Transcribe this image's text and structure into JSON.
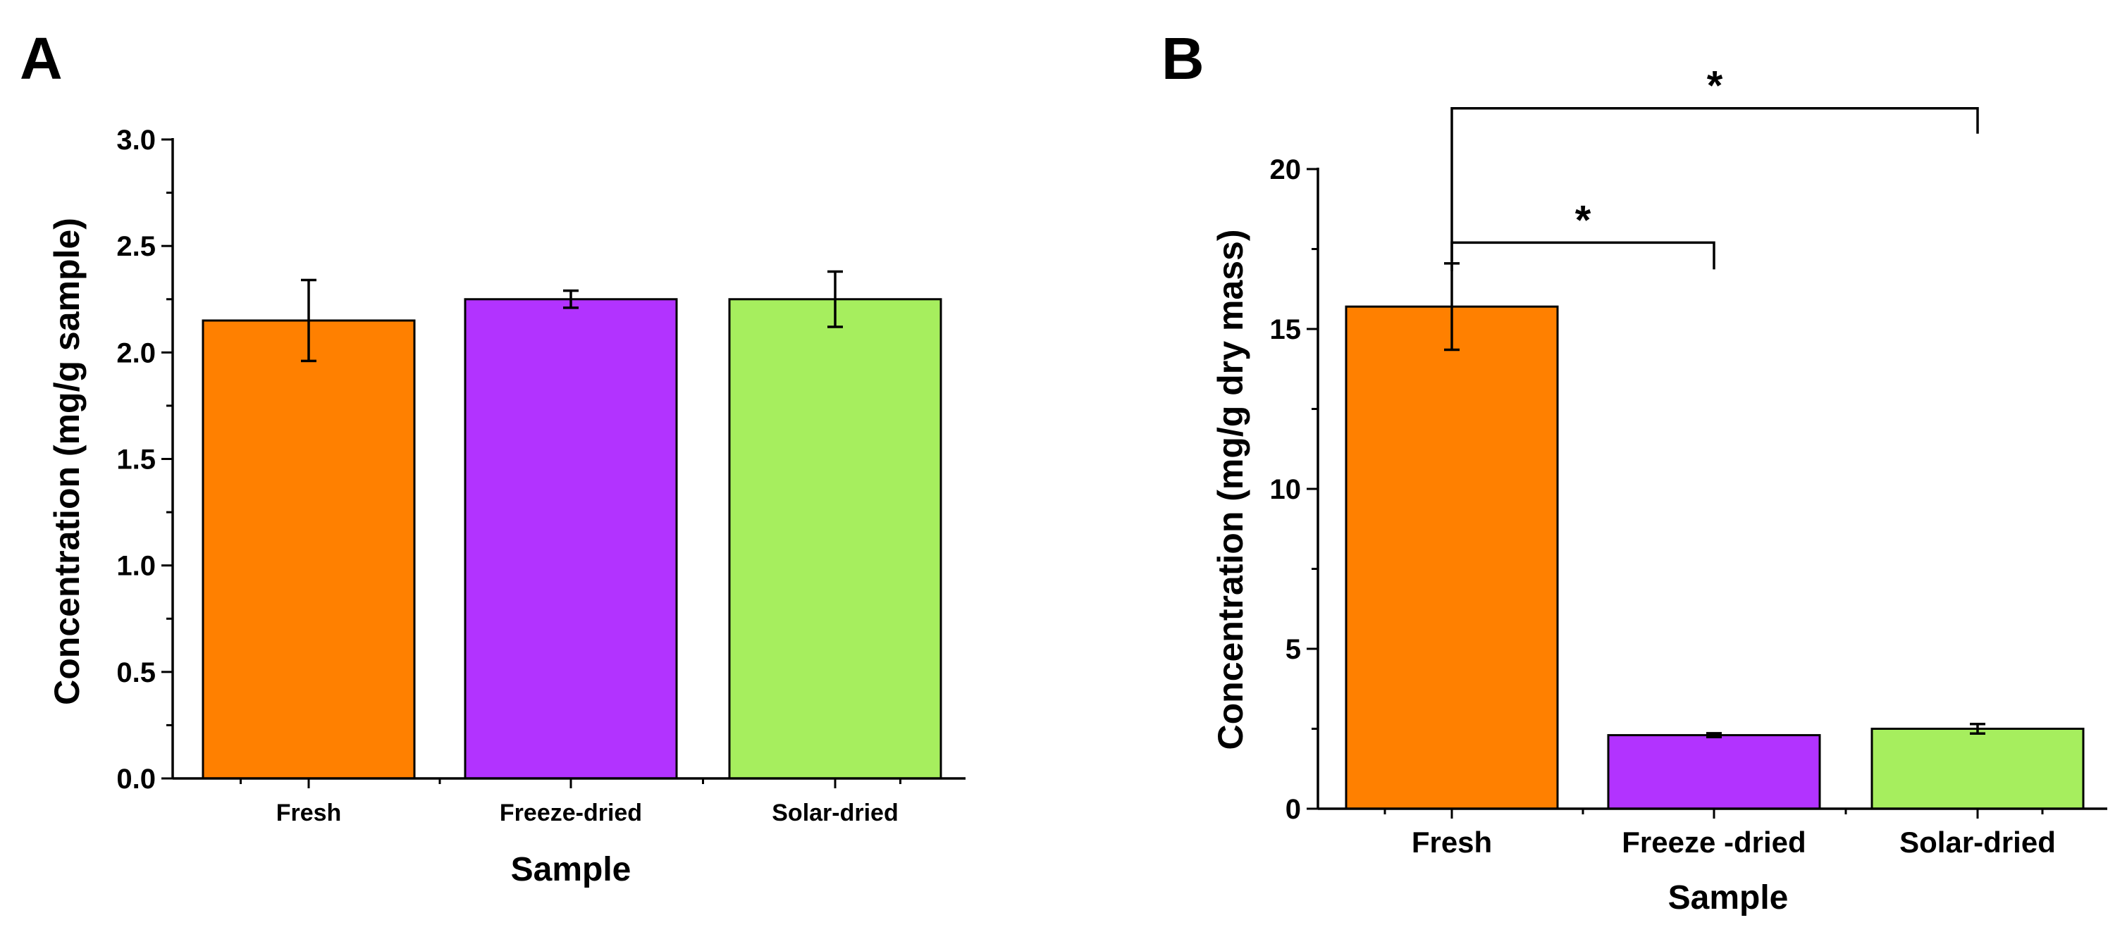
{
  "chart_data": [
    {
      "panel": "A",
      "type": "bar",
      "categories": [
        "Fresh",
        "Freeze-dried",
        "Solar-dried"
      ],
      "values": [
        2.15,
        2.25,
        2.25
      ],
      "errors": [
        0.19,
        0.04,
        0.13
      ],
      "colors": [
        "#FF8000",
        "#B233FF",
        "#A6EE5E"
      ],
      "xlabel": "Sample",
      "ylabel": "Concentration (mg/g sample)",
      "ylim": [
        0,
        3.0
      ],
      "yticks": [
        "0.0",
        "0.5",
        "1.0",
        "1.5",
        "2.0",
        "2.5",
        "3.0"
      ],
      "annotations": []
    },
    {
      "panel": "B",
      "type": "bar",
      "categories": [
        "Fresh",
        "Freeze -dried",
        "Solar-dried"
      ],
      "values": [
        15.7,
        2.3,
        2.5
      ],
      "errors": [
        1.35,
        0.06,
        0.15
      ],
      "colors": [
        "#FF8000",
        "#B233FF",
        "#A6EE5E"
      ],
      "xlabel": "Sample",
      "ylabel": "Concentration (mg/g dry mass)",
      "ylim": [
        0,
        20
      ],
      "yticks": [
        "0",
        "5",
        "10",
        "15",
        "20"
      ],
      "annotations": [
        {
          "label": "*",
          "from": "Fresh",
          "to": "Freeze -dried"
        },
        {
          "label": "*",
          "from": "Fresh",
          "to": "Solar-dried"
        }
      ]
    }
  ]
}
